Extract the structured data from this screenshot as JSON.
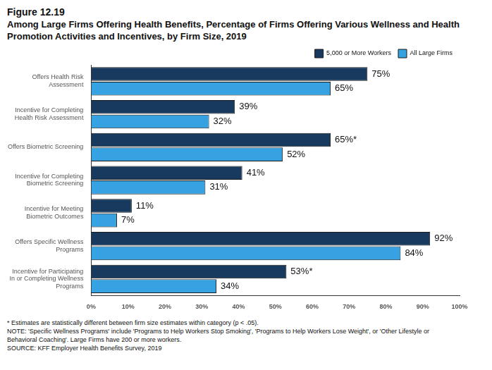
{
  "chart_data": {
    "type": "bar",
    "orientation": "horizontal",
    "title": "Figure 12.19",
    "subtitle": "Among Large Firms Offering Health Benefits, Percentage of Firms Offering Various Wellness and Health Promotion Activities and Incentives, by Firm Size, 2019",
    "categories": [
      "Offers Health Risk Assessment",
      "Incentive for Completing Health Risk Assessment",
      "Offers Biometric Screening",
      "Incentive for Completing Biometric Screening",
      "Incentive for Meeting Biometric Outcomes",
      "Offers Specific Wellness Programs",
      "Incentive for Participating In or Completing Wellness Programs"
    ],
    "series": [
      {
        "name": "5,000 or More Workers",
        "color": "#173a5e",
        "values": [
          75,
          39,
          65,
          41,
          11,
          92,
          53
        ],
        "value_labels": [
          "75%",
          "39%",
          "65%*",
          "41%",
          "11%",
          "92%",
          "53%*"
        ]
      },
      {
        "name": "All Large Firms",
        "color": "#36a2e2",
        "values": [
          65,
          32,
          52,
          31,
          7,
          84,
          34
        ],
        "value_labels": [
          "65%",
          "32%",
          "52%",
          "31%",
          "7%",
          "84%",
          "34%"
        ]
      }
    ],
    "xlim": [
      0,
      100
    ],
    "xticks": [
      {
        "value": 0,
        "label": "0%"
      },
      {
        "value": 10,
        "label": "10%"
      },
      {
        "value": 20,
        "label": "20%"
      },
      {
        "value": 30,
        "label": "30%"
      },
      {
        "value": 40,
        "label": "40%"
      },
      {
        "value": 50,
        "label": "50%"
      },
      {
        "value": 60,
        "label": "60%"
      },
      {
        "value": 70,
        "label": "70%"
      },
      {
        "value": 80,
        "label": "80%"
      },
      {
        "value": 90,
        "label": "90%"
      },
      {
        "value": 100,
        "label": "100%"
      }
    ],
    "grid": false,
    "legend": "top-right",
    "data_labels": true,
    "notes": [
      "* Estimates are statistically different between firm size estimates within category (p < .05).",
      "NOTE: 'Specific Wellness Programs' include 'Programs to Help Workers Stop Smoking', 'Programs to Help Workers Lose Weight', or 'Other Lifestyle or Behavioral Coaching'. Large Firms have 200 or more workers.",
      "SOURCE: KFF Employer Health Benefits Survey, 2019"
    ]
  }
}
